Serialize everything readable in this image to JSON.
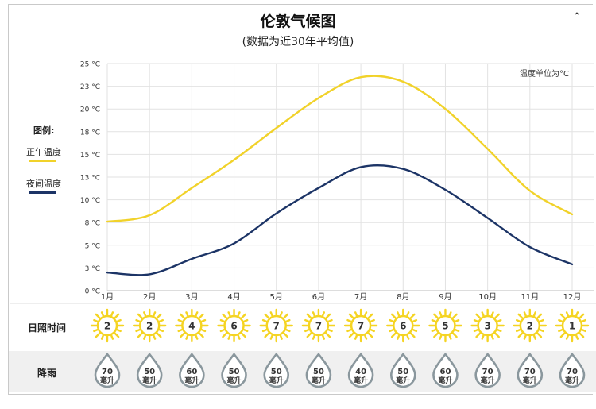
{
  "page": {
    "title": "伦敦气候图",
    "subtitle": "(数据为近30年平均值)",
    "collapse_icon": "chevron-up-icon",
    "unit_note": "温度单位为°C"
  },
  "legend": {
    "title": "图例:",
    "items": [
      {
        "label": "正午温度",
        "color": "#f1d22a"
      },
      {
        "label": "夜间温度",
        "color": "#1c3466"
      }
    ]
  },
  "rows": {
    "sunshine_label": "日照时间",
    "rain_label": "降雨"
  },
  "colors": {
    "day_line": "#f1d22a",
    "night_line": "#1c3466",
    "sun": "#f5d422",
    "drop_stroke": "#8a979d",
    "grid": "#e2e2e2"
  },
  "chart_data": {
    "type": "line",
    "categories": [
      "1月",
      "2月",
      "3月",
      "4月",
      "5月",
      "6月",
      "7月",
      "8月",
      "9月",
      "10月",
      "11月",
      "12月"
    ],
    "y_tick_labels": [
      "0 °C",
      "3 °C",
      "5 °C",
      "8 °C",
      "10 °C",
      "13 °C",
      "15 °C",
      "18 °C",
      "20 °C",
      "23 °C",
      "25 °C"
    ],
    "ylim": [
      0,
      25
    ],
    "grid": true,
    "series": [
      {
        "name": "正午温度",
        "values": [
          7.6,
          8.3,
          11.3,
          14.4,
          17.9,
          21.2,
          23.5,
          23.0,
          20.0,
          15.6,
          11.0,
          8.4
        ]
      },
      {
        "name": "夜间温度",
        "values": [
          2.0,
          1.8,
          3.5,
          5.2,
          8.5,
          11.3,
          13.6,
          13.4,
          11.1,
          8.0,
          4.8,
          2.9
        ]
      }
    ],
    "sunshine_hours": [
      2,
      2,
      4,
      6,
      7,
      7,
      7,
      6,
      5,
      3,
      2,
      1
    ],
    "rainfall": {
      "unit": "毫升",
      "values": [
        70,
        50,
        60,
        50,
        50,
        50,
        40,
        50,
        60,
        70,
        70,
        70
      ]
    }
  }
}
